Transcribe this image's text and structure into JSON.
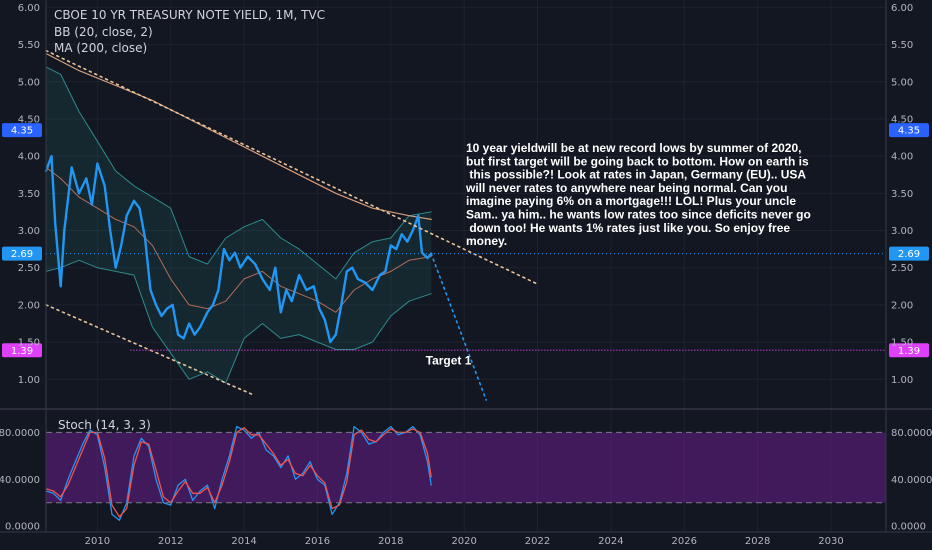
{
  "chart_data": [
    {
      "type": "line",
      "title": "CBOE 10 YR TREASURY NOTE YIELD, 1M, TVC",
      "indicators": [
        "BB (20, close, 2)",
        "MA (200, close)"
      ],
      "ylim": [
        0.6,
        6.1
      ],
      "xlim": [
        2008.6,
        2031.5
      ],
      "y_ticks": [
        "6.00",
        "5.50",
        "5.00",
        "4.50",
        "4.00",
        "3.50",
        "3.00",
        "2.50",
        "2.00",
        "1.50",
        "1.00"
      ],
      "x_ticks": [
        "2010",
        "2012",
        "2014",
        "2016",
        "2018",
        "2020",
        "2022",
        "2024",
        "2026",
        "2028",
        "2030"
      ],
      "grid": true,
      "series": [
        {
          "name": "",
          "color": "#2196f3",
          "x": [
            2008.6,
            2008.75,
            2008.85,
            2009.0,
            2009.1,
            2009.3,
            2009.5,
            2009.7,
            2009.85,
            2010.0,
            2010.2,
            2010.35,
            2010.5,
            2010.65,
            2010.8,
            2011.0,
            2011.15,
            2011.3,
            2011.45,
            2011.6,
            2011.75,
            2011.9,
            2012.05,
            2012.2,
            2012.35,
            2012.5,
            2012.65,
            2012.8,
            2013.0,
            2013.15,
            2013.3,
            2013.45,
            2013.6,
            2013.75,
            2013.9,
            2014.1,
            2014.3,
            2014.5,
            2014.7,
            2014.85,
            2015.0,
            2015.15,
            2015.3,
            2015.5,
            2015.7,
            2015.9,
            2016.05,
            2016.2,
            2016.35,
            2016.5,
            2016.65,
            2016.8,
            2016.95,
            2017.1,
            2017.3,
            2017.5,
            2017.7,
            2017.85,
            2018.0,
            2018.15,
            2018.3,
            2018.45,
            2018.6,
            2018.75,
            2018.85,
            2019.0,
            2019.1
          ],
          "values": [
            3.8,
            4.0,
            3.1,
            2.25,
            3.0,
            3.85,
            3.5,
            3.7,
            3.35,
            3.9,
            3.6,
            3.0,
            2.5,
            2.8,
            3.2,
            3.4,
            3.3,
            2.9,
            2.2,
            2.0,
            1.85,
            1.95,
            2.0,
            1.6,
            1.55,
            1.75,
            1.6,
            1.7,
            1.9,
            2.0,
            2.2,
            2.75,
            2.6,
            2.7,
            2.5,
            2.65,
            2.55,
            2.35,
            2.2,
            2.5,
            1.9,
            2.2,
            2.05,
            2.4,
            2.2,
            2.25,
            1.95,
            1.8,
            1.5,
            1.6,
            2.0,
            2.45,
            2.5,
            2.35,
            2.3,
            2.2,
            2.4,
            2.45,
            2.8,
            2.75,
            2.95,
            2.85,
            3.0,
            3.2,
            2.7,
            2.63,
            2.69
          ]
        },
        {
          "name": "",
          "color": "#b26a5a",
          "x": [
            2008.6,
            2009.0,
            2009.5,
            2010.0,
            2010.5,
            2011.0,
            2011.5,
            2012.0,
            2012.5,
            2013.0,
            2013.5,
            2014.0,
            2014.5,
            2015.0,
            2015.5,
            2016.0,
            2016.5,
            2017.0,
            2017.5,
            2018.0,
            2018.5,
            2019.1
          ],
          "values": [
            3.85,
            3.7,
            3.45,
            3.3,
            3.15,
            3.05,
            2.8,
            2.35,
            2.0,
            1.95,
            2.05,
            2.35,
            2.45,
            2.25,
            2.15,
            2.05,
            1.9,
            2.2,
            2.35,
            2.45,
            2.6,
            2.65
          ]
        },
        {
          "name": "",
          "color": "#2d8a8a",
          "x": [
            2008.6,
            2009.0,
            2009.5,
            2010.0,
            2010.5,
            2011.0,
            2011.5,
            2012.0,
            2012.5,
            2013.0,
            2013.5,
            2014.0,
            2014.5,
            2015.0,
            2015.5,
            2016.0,
            2016.5,
            2017.0,
            2017.5,
            2018.0,
            2018.5,
            2019.1
          ],
          "values": [
            5.2,
            5.1,
            4.6,
            4.2,
            3.8,
            3.6,
            3.45,
            3.3,
            2.65,
            2.55,
            2.9,
            3.05,
            3.15,
            2.9,
            2.75,
            2.55,
            2.35,
            2.7,
            2.85,
            2.9,
            3.2,
            3.25
          ]
        },
        {
          "name": "",
          "color": "#2d8a8a",
          "x": [
            2008.6,
            2009.0,
            2009.5,
            2010.0,
            2010.5,
            2011.0,
            2011.5,
            2012.0,
            2012.5,
            2013.0,
            2013.5,
            2014.0,
            2014.5,
            2015.0,
            2015.5,
            2016.0,
            2016.5,
            2017.0,
            2017.5,
            2018.0,
            2018.5,
            2019.1
          ],
          "values": [
            2.45,
            2.5,
            2.6,
            2.5,
            2.45,
            2.4,
            1.7,
            1.35,
            1.0,
            1.1,
            0.95,
            1.55,
            1.75,
            1.55,
            1.6,
            1.5,
            1.4,
            1.4,
            1.5,
            1.85,
            2.05,
            2.15
          ]
        },
        {
          "name": "",
          "color": "#d79c7c",
          "x": [
            2008.6,
            2009.5,
            2010.5,
            2011.5,
            2012.5,
            2013.5,
            2014.5,
            2015.5,
            2016.5,
            2017.5,
            2018.5,
            2019.1
          ],
          "values": [
            5.38,
            5.15,
            4.95,
            4.75,
            4.5,
            4.25,
            4.0,
            3.75,
            3.5,
            3.3,
            3.2,
            3.15
          ]
        }
      ],
      "annotations": {
        "note": "10 year yieldwill be at new record lows by summer of 2020,\nbut first target will be going back to bottom. How on earth is\n this possible?! Look at rates in Japan, Germany (EU).. USA\nwill never rates to anywhere near being normal. Can you\nimagine paying 6% on a mortgage!!! LOL! Plus your uncle\nSam.. ya him.. he wants low rates too since deficits never go\n down too! He wants 1% rates just like you. So enjoy free\nmoney.",
        "target_label": "Target 1",
        "level_badges": [
          {
            "text": "4.35",
            "value": 4.35,
            "color": "#2962ff"
          },
          {
            "text": "2.69",
            "value": 2.69,
            "color": "#2196f3"
          },
          {
            "text": "1.39",
            "value": 1.39,
            "color": "#e040fb"
          }
        ],
        "upper_trend": {
          "x": [
            2008.6,
            2022.0
          ],
          "values": [
            5.42,
            2.28
          ],
          "color": "#e8c49a"
        },
        "lower_trend": {
          "x": [
            2008.6,
            2014.3
          ],
          "values": [
            2.0,
            0.78
          ],
          "color": "#e8c49a"
        },
        "projection": {
          "x": [
            2019.1,
            2020.6
          ],
          "values": [
            2.69,
            0.72
          ],
          "color": "#2196f3"
        },
        "target_line": {
          "x": [
            2010.9,
            2031.5
          ],
          "value": 1.39,
          "color": "#e040fb"
        }
      }
    },
    {
      "type": "line",
      "title": "Stoch (14, 3, 3)",
      "ylim": [
        -5,
        100
      ],
      "y_ticks": [
        "80.0000",
        "40.0000",
        "0.0000"
      ],
      "band": [
        20,
        80
      ],
      "series": [
        {
          "name": "",
          "color": "#2196f3",
          "x": [
            2008.6,
            2008.8,
            2009.0,
            2009.2,
            2009.4,
            2009.6,
            2009.8,
            2010.0,
            2010.2,
            2010.4,
            2010.6,
            2010.8,
            2011.0,
            2011.2,
            2011.4,
            2011.6,
            2011.8,
            2012.0,
            2012.2,
            2012.4,
            2012.6,
            2012.8,
            2013.0,
            2013.2,
            2013.4,
            2013.6,
            2013.8,
            2014.0,
            2014.2,
            2014.4,
            2014.6,
            2014.8,
            2015.0,
            2015.2,
            2015.4,
            2015.6,
            2015.8,
            2016.0,
            2016.2,
            2016.4,
            2016.6,
            2016.8,
            2017.0,
            2017.2,
            2017.4,
            2017.6,
            2017.8,
            2018.0,
            2018.2,
            2018.4,
            2018.6,
            2018.8,
            2019.0,
            2019.1
          ],
          "values": [
            30,
            28,
            22,
            40,
            55,
            70,
            82,
            78,
            50,
            10,
            5,
            20,
            60,
            75,
            68,
            40,
            20,
            18,
            35,
            40,
            22,
            30,
            35,
            15,
            40,
            60,
            85,
            82,
            75,
            80,
            65,
            60,
            50,
            60,
            40,
            45,
            55,
            40,
            35,
            10,
            20,
            45,
            85,
            80,
            70,
            72,
            80,
            85,
            78,
            80,
            85,
            78,
            55,
            35
          ]
        },
        {
          "name": "",
          "color": "#ef5350",
          "x": [
            2008.6,
            2008.8,
            2009.0,
            2009.2,
            2009.4,
            2009.6,
            2009.8,
            2010.0,
            2010.2,
            2010.4,
            2010.6,
            2010.8,
            2011.0,
            2011.2,
            2011.4,
            2011.6,
            2011.8,
            2012.0,
            2012.2,
            2012.4,
            2012.6,
            2012.8,
            2013.0,
            2013.2,
            2013.4,
            2013.6,
            2013.8,
            2014.0,
            2014.2,
            2014.4,
            2014.6,
            2014.8,
            2015.0,
            2015.2,
            2015.4,
            2015.6,
            2015.8,
            2016.0,
            2016.2,
            2016.4,
            2016.6,
            2016.8,
            2017.0,
            2017.2,
            2017.4,
            2017.6,
            2017.8,
            2018.0,
            2018.2,
            2018.4,
            2018.6,
            2018.8,
            2019.0,
            2019.1
          ],
          "values": [
            32,
            30,
            25,
            35,
            50,
            65,
            80,
            80,
            58,
            18,
            8,
            15,
            52,
            72,
            70,
            48,
            25,
            20,
            30,
            38,
            28,
            28,
            33,
            20,
            35,
            55,
            80,
            84,
            78,
            78,
            70,
            62,
            52,
            57,
            45,
            43,
            52,
            43,
            37,
            15,
            18,
            38,
            78,
            82,
            74,
            72,
            78,
            83,
            80,
            80,
            83,
            80,
            62,
            42
          ]
        }
      ]
    }
  ]
}
